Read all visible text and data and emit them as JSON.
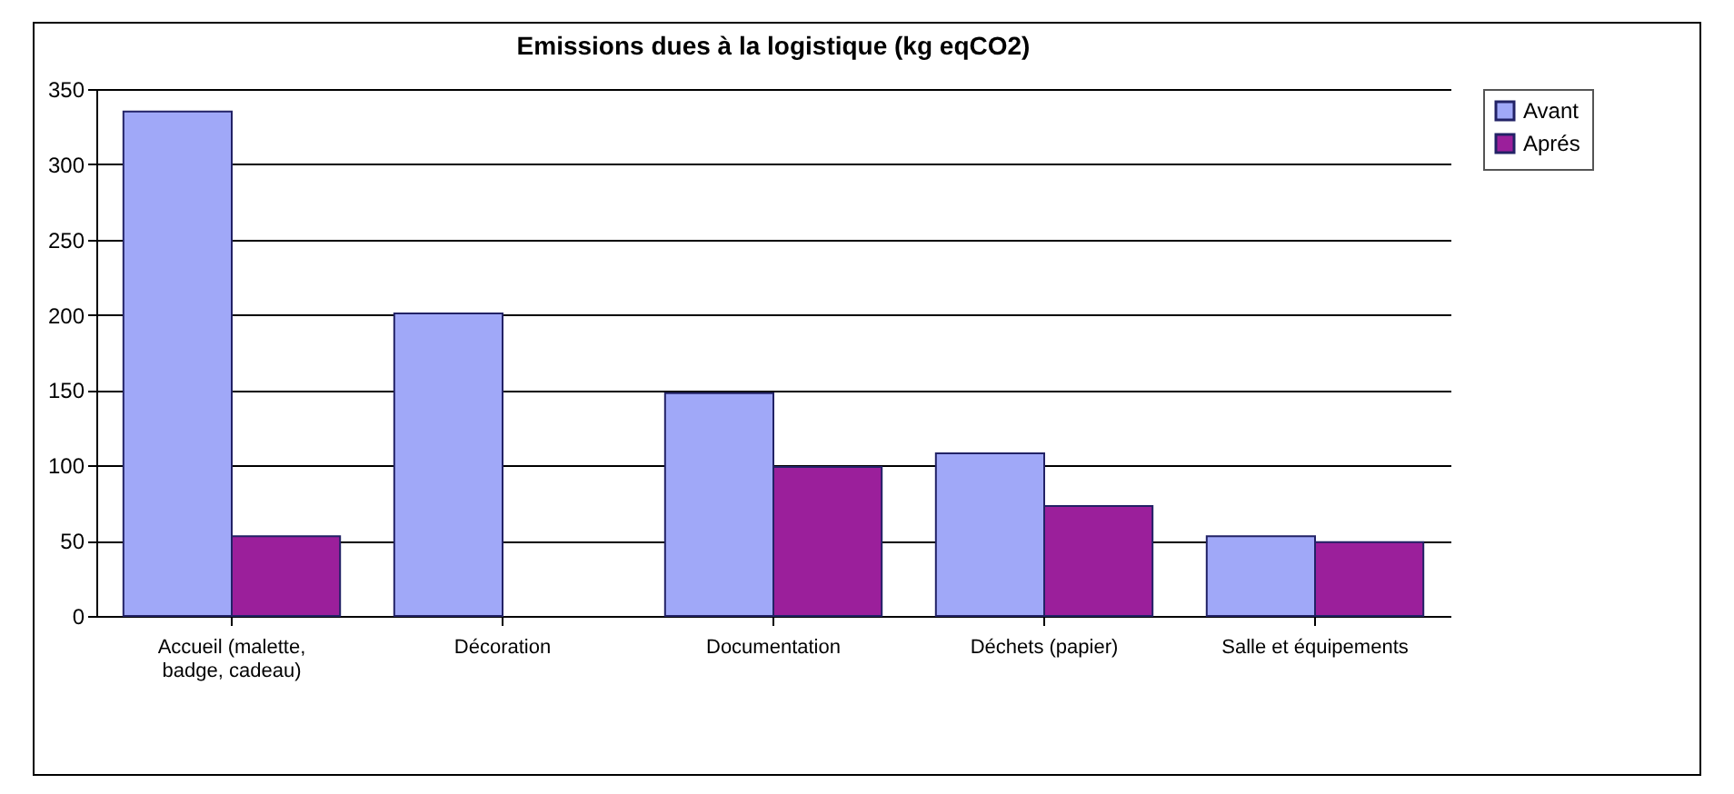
{
  "chart_data": {
    "type": "bar",
    "title": "Emissions dues à la logistique (kg eqCO2)",
    "categories": [
      "Accueil (malette, badge, cadeau)",
      "Décoration",
      "Documentation",
      "Déchets (papier)",
      "Salle et équipements"
    ],
    "series": [
      {
        "name": "Avant",
        "color": "#a0a8f8",
        "values": [
          335,
          201,
          148,
          108,
          53
        ]
      },
      {
        "name": "Aprés",
        "color": "#9b1f9b",
        "values": [
          53,
          null,
          99,
          73,
          49
        ]
      }
    ],
    "ylim": [
      0,
      350
    ],
    "yticks": [
      0,
      50,
      100,
      150,
      200,
      250,
      300,
      350
    ],
    "grid": "y",
    "legend": "right"
  }
}
